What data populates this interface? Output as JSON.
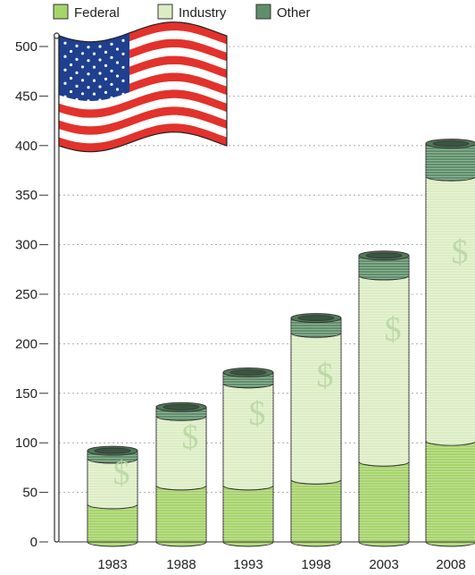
{
  "chart_data": {
    "type": "bar",
    "stacked": true,
    "categories": [
      "1983",
      "1988",
      "1993",
      "1998",
      "2003",
      "2008"
    ],
    "series": [
      {
        "name": "Federal",
        "color": "#a6d36a",
        "values": [
          38,
          57,
          57,
          63,
          81,
          102
        ]
      },
      {
        "name": "Industry",
        "color": "#dcedc4",
        "values": [
          46,
          70,
          103,
          148,
          188,
          267
        ]
      },
      {
        "name": "Other",
        "color": "#5f8f6a",
        "values": [
          8,
          9,
          11,
          15,
          20,
          33
        ]
      }
    ],
    "title": "",
    "xlabel": "",
    "ylabel": "",
    "ylim": [
      0,
      500
    ],
    "yticks": [
      "0",
      "50",
      "100",
      "150",
      "200",
      "250",
      "300",
      "350",
      "400",
      "450",
      "500"
    ],
    "grid": true,
    "legend_position": "top-left",
    "decorations": [
      "us-flag-icon",
      "dollar-sign-icon"
    ],
    "dollar_symbol": "$"
  }
}
